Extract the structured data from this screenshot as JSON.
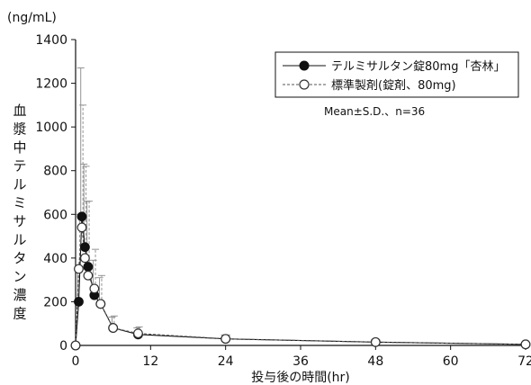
{
  "chart_data": {
    "type": "line",
    "unit_label": "(ng/mL)",
    "xlabel": "投与後の時間(hr)",
    "ylabel": "血漿中テルミサルタン濃度",
    "xlim": [
      0,
      72
    ],
    "ylim": [
      0,
      1400
    ],
    "x_ticks": [
      0,
      12,
      24,
      36,
      48,
      60,
      72
    ],
    "x_tick_labels": [
      "0",
      "12",
      "24",
      "36",
      "48",
      "60",
      "72"
    ],
    "y_ticks": [
      0,
      200,
      400,
      600,
      800,
      1000,
      1200,
      1400
    ],
    "y_tick_labels": [
      "0",
      "200",
      "400",
      "600",
      "800",
      "1000",
      "1200",
      "1400"
    ],
    "grid": false,
    "legend_position": "top-right",
    "note": "Mean±S.D.、n=36",
    "series": [
      {
        "name": "テルミサルタン錠80mg「杏林」",
        "marker": "filled-circle",
        "line_style": "solid",
        "color": "#111111",
        "x": [
          0,
          0.5,
          1,
          1.5,
          2,
          3,
          4,
          6,
          10,
          24,
          48,
          72
        ],
        "y": [
          0,
          200,
          590,
          450,
          360,
          230,
          190,
          80,
          50,
          30,
          15,
          5
        ],
        "sd": [
          0,
          150,
          680,
          380,
          300,
          160,
          120,
          50,
          30,
          18,
          10,
          5
        ]
      },
      {
        "name": "標準製剤(錠剤、80mg)",
        "marker": "open-circle",
        "line_style": "dashed",
        "color": "#555555",
        "x": [
          0,
          0.5,
          1,
          1.5,
          2,
          3,
          4,
          6,
          10,
          24,
          48,
          72
        ],
        "y": [
          0,
          350,
          540,
          400,
          320,
          260,
          190,
          80,
          55,
          30,
          15,
          5
        ],
        "sd": [
          0,
          250,
          560,
          420,
          340,
          180,
          130,
          55,
          30,
          18,
          10,
          5
        ]
      }
    ]
  }
}
